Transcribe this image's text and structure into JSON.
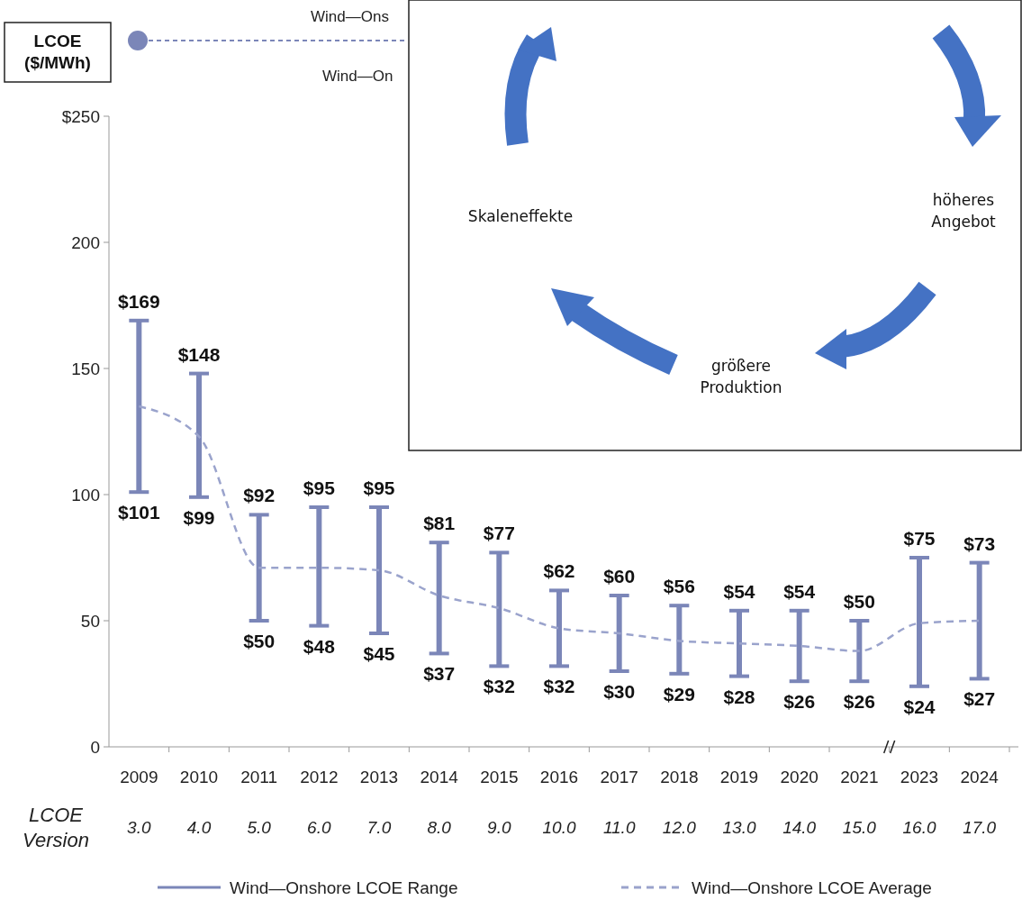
{
  "chart_data": {
    "type": "bar",
    "ylabel": "LCOE ($/MWh)",
    "categories": [
      "2009",
      "2010",
      "2011",
      "2012",
      "2013",
      "2014",
      "2015",
      "2016",
      "2017",
      "2018",
      "2019",
      "2020",
      "2021",
      "2023",
      "2024"
    ],
    "series": [
      {
        "name": "Wind—Onshore LCOE Range",
        "color": "#7b86b8",
        "base": [
          101,
          99,
          50,
          48,
          45,
          37,
          32,
          32,
          30,
          29,
          28,
          26,
          26,
          24,
          27
        ],
        "values": [
          68,
          49,
          42,
          47,
          50,
          44,
          45,
          30,
          30,
          27,
          26,
          28,
          24,
          51,
          46
        ]
      },
      {
        "name": "Wind—Onshore LCOE Average",
        "type": "line",
        "color": "#9aa3cc",
        "line_style": "dashed",
        "values": [
          135,
          123,
          71,
          71,
          70,
          60,
          55,
          47,
          45,
          42,
          41,
          40,
          38,
          49,
          50
        ]
      }
    ],
    "ylim": [
      0,
      250
    ],
    "yticks": [
      {
        "value": 0,
        "label": "0"
      },
      {
        "value": 50,
        "label": "50"
      },
      {
        "value": 100,
        "label": "100"
      },
      {
        "value": 150,
        "label": "150"
      },
      {
        "value": 200,
        "label": "200"
      },
      {
        "value": 250,
        "label": "$250"
      }
    ],
    "grid": false,
    "legend": "bottom",
    "annotations": [
      "Wind—Ons",
      "Wind—On",
      "Skaleneffekte",
      "höheres Angebot",
      "größere Produktion",
      "LCOE Version",
      "3.0",
      "4.0",
      "5.0",
      "6.0",
      "7.0",
      "8.0",
      "9.0",
      "10.0",
      "11.0",
      "12.0",
      "13.0",
      "14.0",
      "15.0",
      "16.0",
      "17.0",
      {
        "text": "$169",
        "x": "2009",
        "y": 169
      },
      {
        "text": "$101",
        "x": "2009",
        "y": 101
      },
      {
        "text": "$148",
        "x": "2010",
        "y": 148
      },
      {
        "text": "$99",
        "x": "2010",
        "y": 99
      },
      {
        "text": "$92",
        "x": "2011",
        "y": 92
      },
      {
        "text": "$50",
        "x": "2011",
        "y": 50
      },
      {
        "text": "$95",
        "x": "2012",
        "y": 95
      },
      {
        "text": "$48",
        "x": "2012",
        "y": 48
      },
      {
        "text": "$95",
        "x": "2013",
        "y": 95
      },
      {
        "text": "$45",
        "x": "2013",
        "y": 45
      },
      {
        "text": "$81",
        "x": "2014",
        "y": 81
      },
      {
        "text": "$37",
        "x": "2014",
        "y": 37
      },
      {
        "text": "$77",
        "x": "2015",
        "y": 77
      },
      {
        "text": "$32",
        "x": "2015",
        "y": 32
      },
      {
        "text": "$62",
        "x": "2016",
        "y": 62
      },
      {
        "text": "$32",
        "x": "2016",
        "y": 32
      },
      {
        "text": "$60",
        "x": "2017",
        "y": 60
      },
      {
        "text": "$30",
        "x": "2017",
        "y": 30
      },
      {
        "text": "$56",
        "x": "2018",
        "y": 56
      },
      {
        "text": "$29",
        "x": "2018",
        "y": 29
      },
      {
        "text": "$54",
        "x": "2019",
        "y": 54
      },
      {
        "text": "$28",
        "x": "2019",
        "y": 28
      },
      {
        "text": "$54",
        "x": "2020",
        "y": 54
      },
      {
        "text": "$26",
        "x": "2020",
        "y": 26
      },
      {
        "text": "$50",
        "x": "2021",
        "y": 50
      },
      {
        "text": "$26",
        "x": "2021",
        "y": 26
      },
      {
        "text": "$75",
        "x": "2023",
        "y": 75
      },
      {
        "text": "$24",
        "x": "2023",
        "y": 24
      },
      {
        "text": "$73",
        "x": "2024",
        "y": 73
      },
      {
        "text": "$27",
        "x": "2024",
        "y": 27
      }
    ]
  }
}
